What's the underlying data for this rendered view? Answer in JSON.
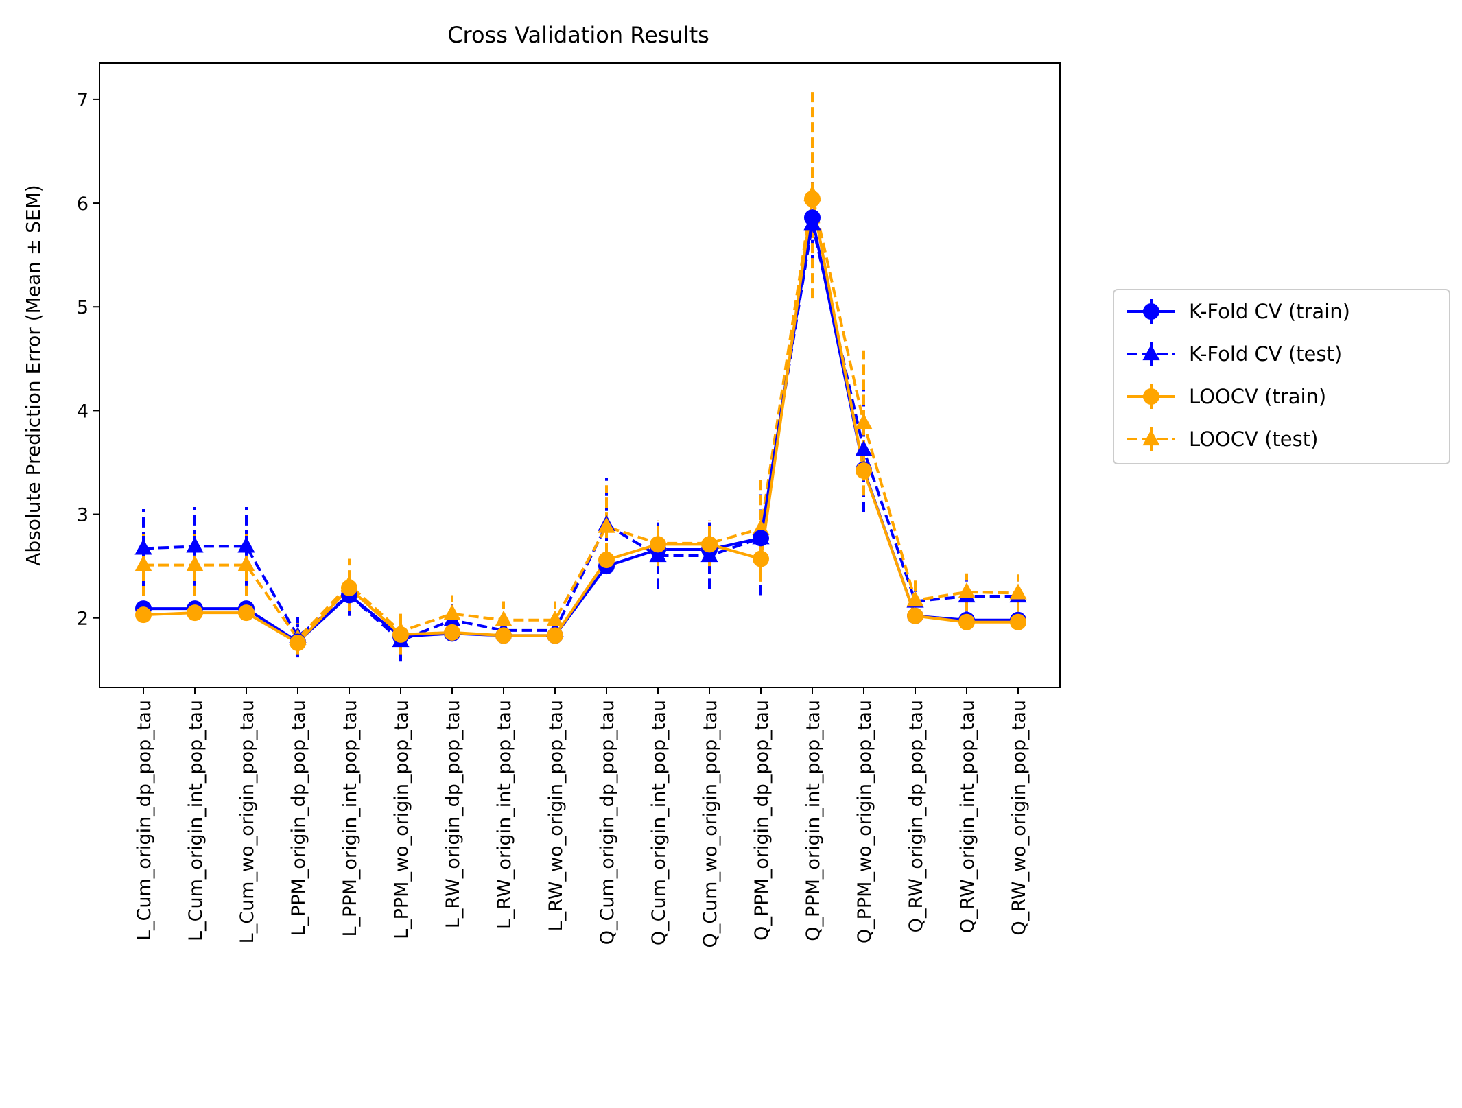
{
  "chart_data": {
    "type": "line",
    "title": "Cross Validation Results",
    "xlabel": "",
    "ylabel": "Absolute Prediction Error (Mean ± SEM)",
    "ylim": [
      1.33,
      7.35
    ],
    "yticks": [
      2,
      3,
      4,
      5,
      6,
      7
    ],
    "grid": false,
    "legend_position": "right-outside",
    "categories": [
      "L_Cum_origin_dp_pop_tau",
      "L_Cum_origin_int_pop_tau",
      "L_Cum_wo_origin_pop_tau",
      "L_PPM_origin_dp_pop_tau",
      "L_PPM_origin_int_pop_tau",
      "L_PPM_wo_origin_pop_tau",
      "L_RW_origin_dp_pop_tau",
      "L_RW_origin_int_pop_tau",
      "L_RW_wo_origin_pop_tau",
      "Q_Cum_origin_dp_pop_tau",
      "Q_Cum_origin_int_pop_tau",
      "Q_Cum_wo_origin_pop_tau",
      "Q_PPM_origin_dp_pop_tau",
      "Q_PPM_origin_int_pop_tau",
      "Q_PPM_wo_origin_pop_tau",
      "Q_RW_origin_dp_pop_tau",
      "Q_RW_origin_int_pop_tau",
      "Q_RW_wo_origin_pop_tau"
    ],
    "series": [
      {
        "name": "K-Fold CV (train)",
        "color": "#0000ff",
        "linestyle": "solid",
        "marker": "circle",
        "values": [
          2.09,
          2.09,
          2.09,
          1.77,
          2.22,
          1.82,
          1.85,
          1.83,
          1.83,
          2.5,
          2.66,
          2.66,
          2.77,
          5.86,
          3.43,
          2.02,
          1.98,
          1.98
        ],
        "errors": [
          0.03,
          0.03,
          0.03,
          0.02,
          0.04,
          0.02,
          0.02,
          0.02,
          0.02,
          0.04,
          0.04,
          0.04,
          0.05,
          0.08,
          0.06,
          0.02,
          0.02,
          0.02
        ]
      },
      {
        "name": "K-Fold CV (test)",
        "color": "#0000ff",
        "linestyle": "dashed",
        "marker": "triangle",
        "values": [
          2.67,
          2.69,
          2.69,
          1.82,
          2.22,
          1.78,
          1.98,
          1.88,
          1.88,
          2.9,
          2.6,
          2.6,
          2.77,
          5.8,
          3.62,
          2.16,
          2.21,
          2.21
        ],
        "errors": [
          0.38,
          0.38,
          0.38,
          0.2,
          0.2,
          0.2,
          0.15,
          0.13,
          0.13,
          0.45,
          0.32,
          0.32,
          0.55,
          0.4,
          0.6,
          0.2,
          0.15,
          0.15
        ]
      },
      {
        "name": "LOOCV (train)",
        "color": "#ffa500",
        "linestyle": "solid",
        "marker": "circle",
        "values": [
          2.03,
          2.05,
          2.05,
          1.76,
          2.29,
          1.84,
          1.86,
          1.83,
          1.83,
          2.56,
          2.71,
          2.71,
          2.57,
          6.04,
          3.42,
          2.02,
          1.96,
          1.96
        ],
        "errors": [
          0.03,
          0.03,
          0.03,
          0.02,
          0.04,
          0.02,
          0.02,
          0.02,
          0.02,
          0.04,
          0.04,
          0.04,
          0.22,
          0.08,
          0.06,
          0.02,
          0.02,
          0.02
        ]
      },
      {
        "name": "LOOCV (test)",
        "color": "#ffa500",
        "linestyle": "dashed",
        "marker": "triangle",
        "values": [
          2.51,
          2.51,
          2.51,
          1.8,
          2.32,
          1.87,
          2.04,
          1.98,
          1.98,
          2.88,
          2.72,
          2.72,
          2.86,
          6.08,
          3.88,
          2.17,
          2.25,
          2.24
        ],
        "errors": [
          0.3,
          0.3,
          0.3,
          0.15,
          0.25,
          0.22,
          0.18,
          0.18,
          0.18,
          0.4,
          0.22,
          0.22,
          0.5,
          1.0,
          0.7,
          0.2,
          0.18,
          0.18
        ]
      }
    ]
  }
}
